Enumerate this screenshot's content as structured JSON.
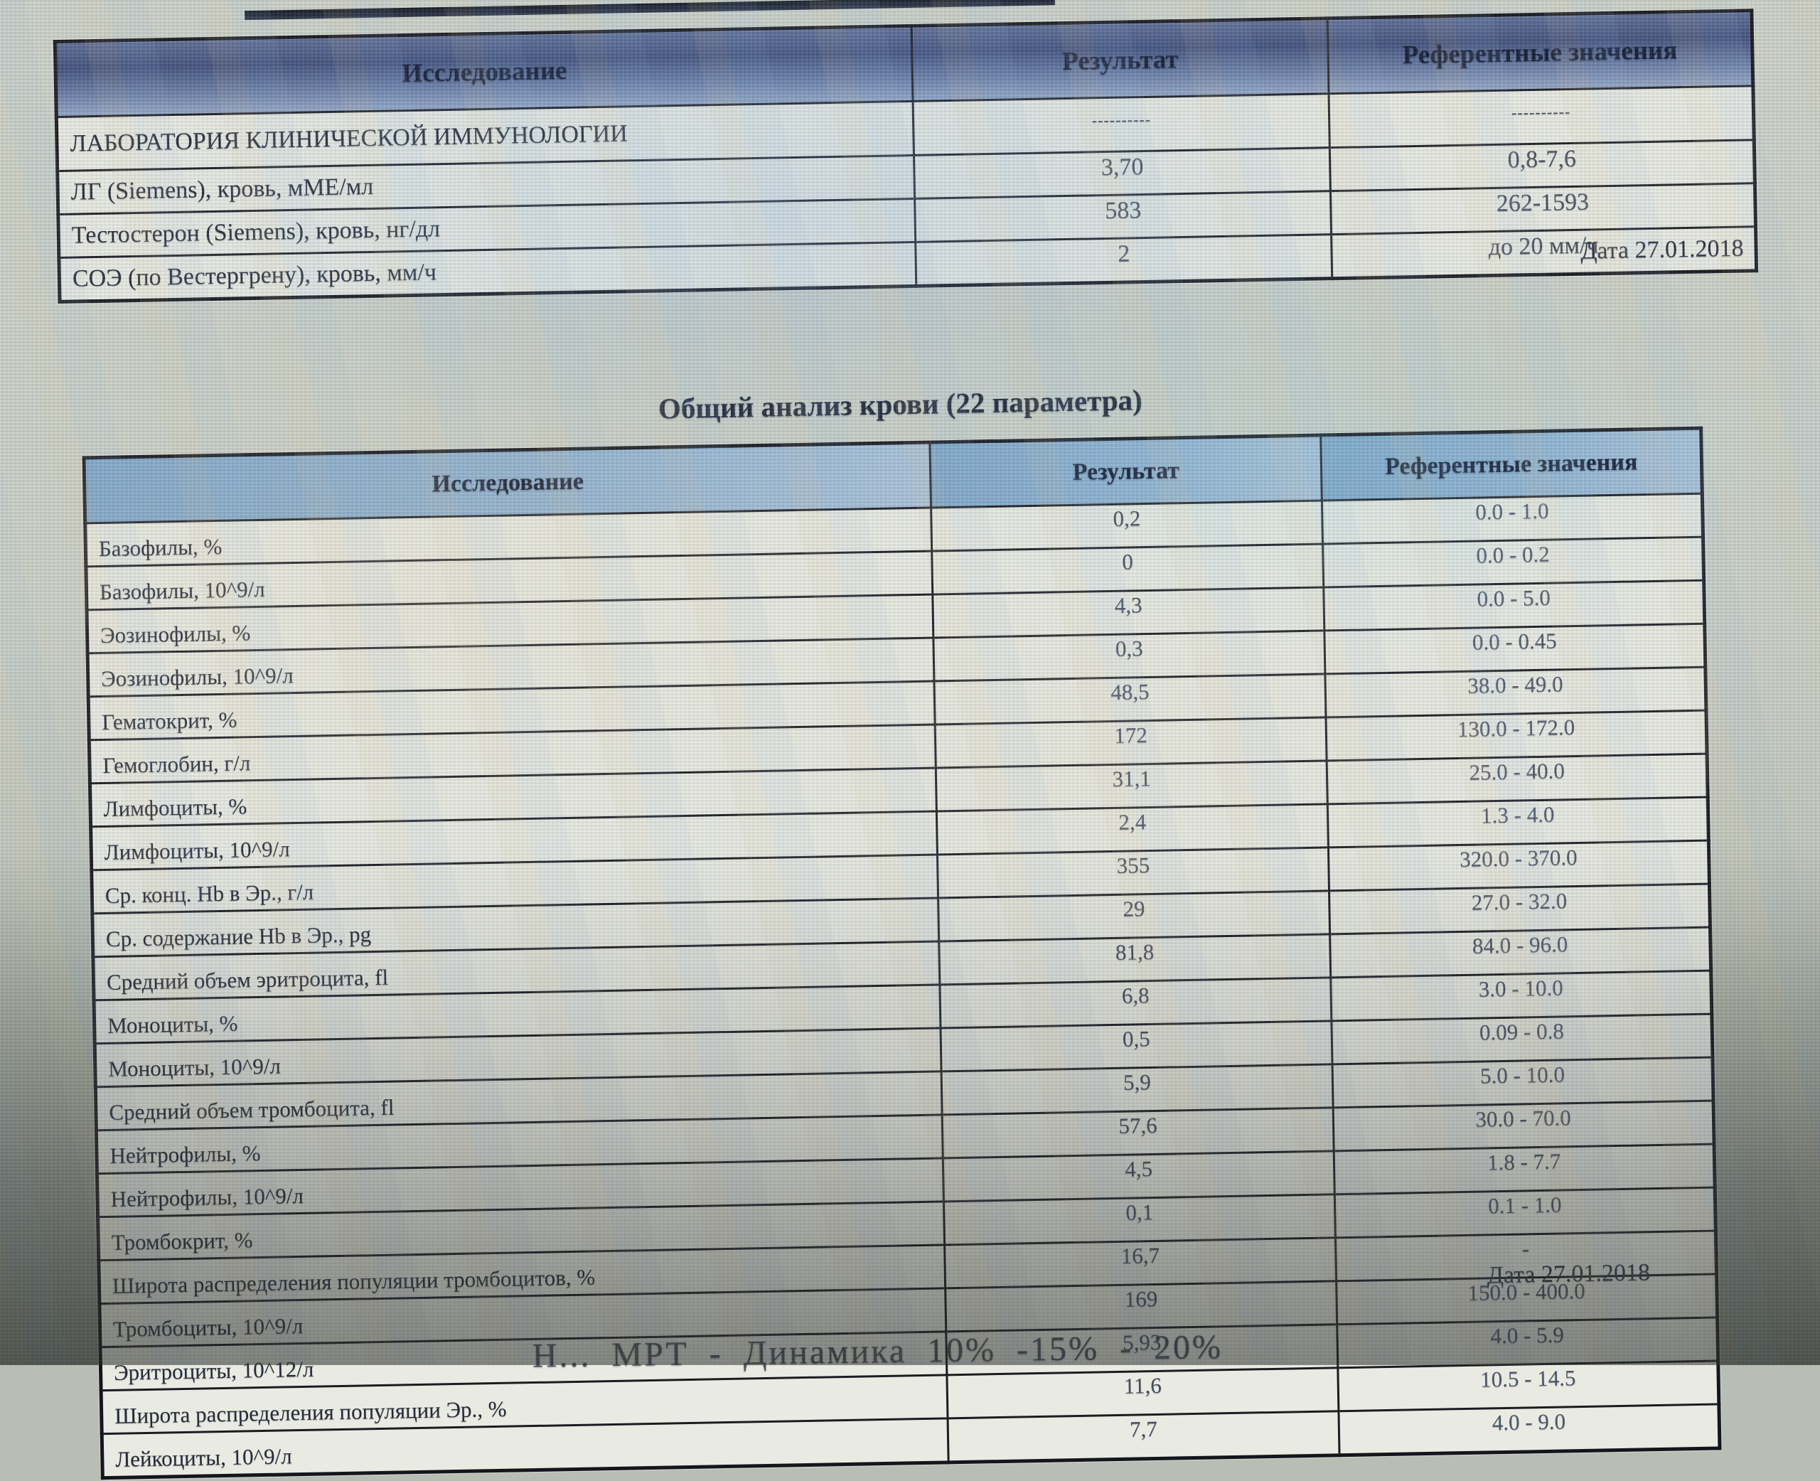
{
  "table1": {
    "headers": [
      "Исследование",
      "Результат",
      "Референтные значения"
    ],
    "rows": [
      [
        "ЛАБОРАТОРИЯ КЛИНИЧЕСКОЙ ИММУНОЛОГИИ",
        "----------",
        "----------"
      ],
      [
        "ЛГ (Siemens), кровь, мМЕ/мл",
        "3,70",
        "0,8-7,6"
      ],
      [
        "Тестостерон (Siemens), кровь, нг/дл",
        "583",
        "262-1593"
      ],
      [
        "СОЭ (по Вестергрену), кровь, мм/ч",
        "2",
        "до 20 мм/ч"
      ]
    ],
    "date_label": "Дата 27.01.2018"
  },
  "table2": {
    "title": "Общий анализ крови (22 параметра)",
    "headers": [
      "Исследование",
      "Результат",
      "Референтные значения"
    ],
    "rows": [
      [
        "Базофилы, %",
        "0,2",
        "0.0 - 1.0"
      ],
      [
        "Базофилы, 10^9/л",
        "0",
        "0.0 - 0.2"
      ],
      [
        "Эозинофилы, %",
        "4,3",
        "0.0 - 5.0"
      ],
      [
        "Эозинофилы, 10^9/л",
        "0,3",
        "0.0 - 0.45"
      ],
      [
        "Гематокрит, %",
        "48,5",
        "38.0 - 49.0"
      ],
      [
        "Гемоглобин, г/л",
        "172",
        "130.0 - 172.0"
      ],
      [
        "Лимфоциты, %",
        "31,1",
        "25.0 - 40.0"
      ],
      [
        "Лимфоциты, 10^9/л",
        "2,4",
        "1.3 - 4.0"
      ],
      [
        "Ср. конц. Hb в Эр., г/л",
        "355",
        "320.0 - 370.0"
      ],
      [
        "Ср. содержание Hb в Эр., pg",
        "29",
        "27.0 - 32.0"
      ],
      [
        "Средний объем эритроцита, fl",
        "81,8",
        "84.0 - 96.0"
      ],
      [
        "Моноциты, %",
        "6,8",
        "3.0 - 10.0"
      ],
      [
        "Моноциты, 10^9/л",
        "0,5",
        "0.09 - 0.8"
      ],
      [
        "Средний объем тромбоцита, fl",
        "5,9",
        "5.0 - 10.0"
      ],
      [
        "Нейтрофилы, %",
        "57,6",
        "30.0 - 70.0"
      ],
      [
        "Нейтрофилы, 10^9/л",
        "4,5",
        "1.8 - 7.7"
      ],
      [
        "Тромбокрит, %",
        "0,1",
        "0.1 - 1.0"
      ],
      [
        "Широта распределения популяции тромбоцитов, %",
        "16,7",
        "-"
      ],
      [
        "Тромбоциты, 10^9/л",
        "169",
        "150.0 - 400.0"
      ],
      [
        "Эритроциты, 10^12/л",
        "5,93",
        "4.0 - 5.9"
      ],
      [
        "Широта распределения популяции Эр., %",
        "11,6",
        "10.5 - 14.5"
      ],
      [
        "Лейкоциты, 10^9/л",
        "7,7",
        "4.0 - 9.0"
      ]
    ],
    "date_label": "Дата 27.01.2018"
  },
  "bottom_note": "Н... МРТ - Динамика 10% -15% - 20%",
  "colors": {
    "header1_blue": "#41507c",
    "header2_blue": "#7fa6c9",
    "table_border": "#1b1b22",
    "page_bg": "#cdd2c9"
  }
}
